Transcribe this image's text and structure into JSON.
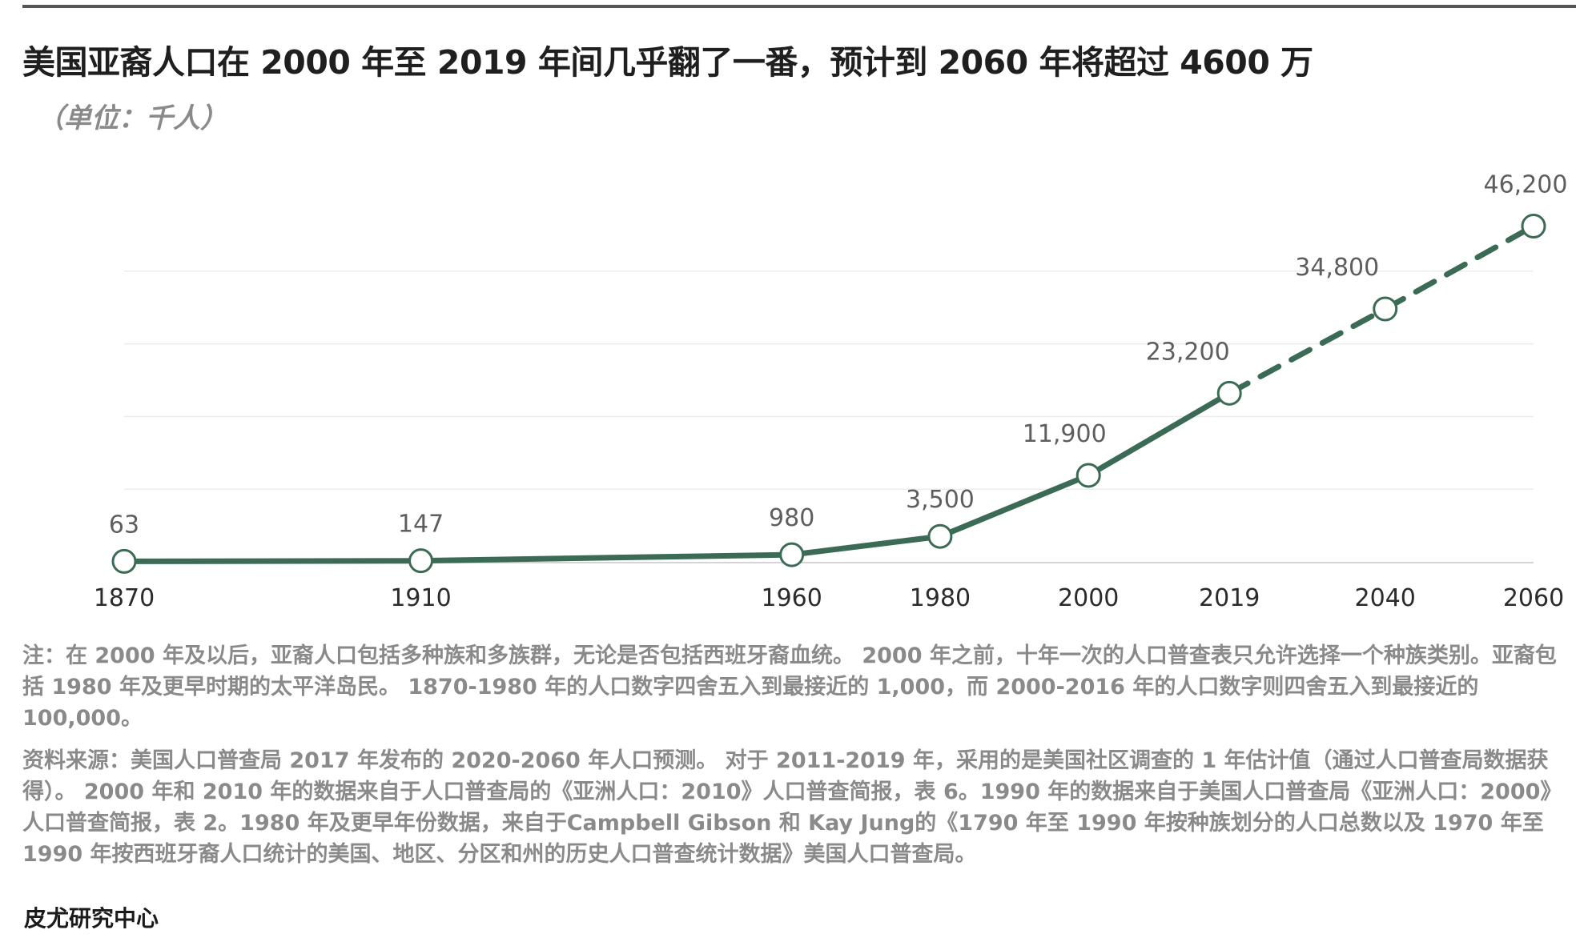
{
  "header": {
    "title": "美国亚裔人口在 2000 年至 2019 年间几乎翻了一番，预计到 2060 年将超过 4600 万",
    "subtitle": "（单位：千人）"
  },
  "chart_data": {
    "type": "line",
    "title": "美国亚裔人口在 2000 年至 2019 年间几乎翻了一番，预计到 2060 年将超过 4600 万",
    "ylabel": "（单位：千人）",
    "xlabel": "",
    "x": [
      1870,
      1910,
      1960,
      1980,
      2000,
      2019,
      2040,
      2060
    ],
    "x_tick_labels": [
      "1870",
      "1910",
      "1960",
      "1980",
      "2000",
      "2019",
      "2040",
      "2060"
    ],
    "series": [
      {
        "values": [
          63,
          147,
          980,
          3500,
          11900,
          23200,
          34800,
          46200
        ],
        "data_labels": [
          "63",
          "147",
          "980",
          "3,500",
          "11,900",
          "23,200",
          "34,800",
          "46,200"
        ],
        "line_style": [
          "solid",
          "solid",
          "solid",
          "solid",
          "solid",
          "dashed",
          "dashed"
        ]
      }
    ],
    "ylim": [
      0,
      50000
    ],
    "grid": true,
    "colors": {
      "line": "#3c6b55",
      "grid": "#ececec",
      "marker_fill": "#ffffff",
      "marker_stroke": "#3c6b55"
    }
  },
  "notes": {
    "note": "注：在 2000 年及以后，亚裔人口包括多种族和多族群，无论是否包括西班牙裔血统。 2000 年之前，十年一次的人口普查表只允许选择一个种族类别。亚裔包括 1980 年及更早时期的太平洋岛民。 1870-1980 年的人口数字四舍五入到最接近的 1,000，而 2000-2016 年的人口数字则四舍五入到最接近的 100,000。",
    "source": "资料来源：美国人口普查局 2017 年发布的 2020-2060 年人口预测。 对于 2011-2019 年，采用的是美国社区调查的 1 年估计值（通过人口普查局数据获得）。 2000 年和 2010 年的数据来自于人口普查局的《亚洲人口：2010》人口普查简报，表 6。1990 年的数据来自于美国人口普查局《亚洲人口：2000》人口普查简报，表 2。1980 年及更早年份数据，来自于Campbell Gibson 和 Kay Jung的《1790 年至 1990 年按种族划分的人口总数以及 1970 年至 1990 年按西班牙裔人口统计的美国、地区、分区和州的历史人口普查统计数据》美国人口普查局。"
  },
  "footer": {
    "publisher": "皮尤研究中心"
  }
}
